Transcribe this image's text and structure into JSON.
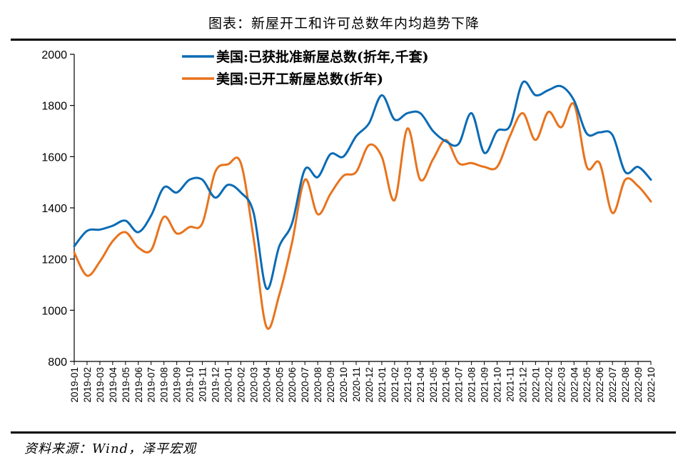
{
  "title": "图表：新屋开工和许可总数年内均趋势下降",
  "source": "资料来源：Wind，泽平宏观",
  "chart_data": {
    "type": "line",
    "ylim": [
      800,
      2000
    ],
    "yticks": [
      800,
      1000,
      1200,
      1400,
      1600,
      1800,
      2000
    ],
    "categories": [
      "2019-01",
      "2019-02",
      "2019-03",
      "2019-04",
      "2019-05",
      "2019-06",
      "2019-07",
      "2019-08",
      "2019-09",
      "2019-10",
      "2019-11",
      "2019-12",
      "2020-01",
      "2020-02",
      "2020-03",
      "2020-04",
      "2020-05",
      "2020-06",
      "2020-07",
      "2020-08",
      "2020-09",
      "2020-10",
      "2020-11",
      "2020-12",
      "2021-01",
      "2021-02",
      "2021-03",
      "2021-04",
      "2021-05",
      "2021-06",
      "2021-07",
      "2021-08",
      "2021-09",
      "2021-10",
      "2021-11",
      "2021-12",
      "2022-01",
      "2022-02",
      "2022-03",
      "2022-04",
      "2022-05",
      "2022-06",
      "2022-07",
      "2022-08",
      "2022-09",
      "2022-10"
    ],
    "legend_position": "top",
    "grid": false,
    "series": [
      {
        "name": "美国:已获批准新屋总数(折年,千套)",
        "color": "#0a6bb5",
        "values": [
          1250,
          1310,
          1315,
          1330,
          1350,
          1305,
          1370,
          1480,
          1460,
          1510,
          1510,
          1440,
          1490,
          1460,
          1380,
          1085,
          1250,
          1340,
          1550,
          1520,
          1610,
          1600,
          1680,
          1730,
          1840,
          1745,
          1770,
          1770,
          1700,
          1660,
          1650,
          1770,
          1615,
          1700,
          1720,
          1890,
          1840,
          1860,
          1875,
          1820,
          1690,
          1695,
          1685,
          1540,
          1560,
          1510
        ]
      },
      {
        "name": "美国:已开工新屋总数(折年)",
        "color": "#e8731d",
        "values": [
          1225,
          1135,
          1190,
          1270,
          1305,
          1245,
          1235,
          1365,
          1300,
          1325,
          1340,
          1540,
          1570,
          1575,
          1280,
          935,
          1060,
          1265,
          1510,
          1375,
          1455,
          1525,
          1540,
          1645,
          1600,
          1430,
          1710,
          1510,
          1590,
          1665,
          1575,
          1575,
          1560,
          1560,
          1680,
          1770,
          1665,
          1775,
          1715,
          1805,
          1560,
          1575,
          1380,
          1510,
          1485,
          1425
        ]
      }
    ]
  }
}
